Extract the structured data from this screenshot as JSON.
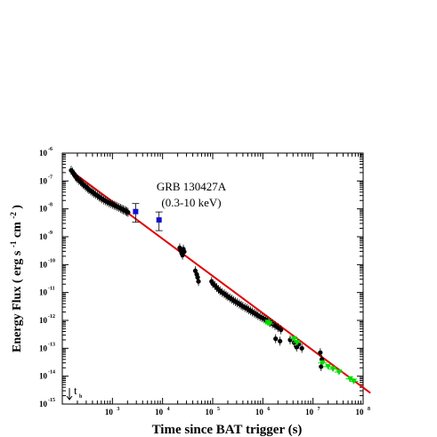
{
  "chart_data": {
    "type": "scatter",
    "xscale": "log",
    "yscale": "log",
    "xlim": [
      100,
      100000000
    ],
    "ylim": [
      1e-15,
      1e-06
    ],
    "xlabel": "Time since BAT trigger (s)",
    "ylabel_main": "Energy Flux ( erg s",
    "ylabel_exp1": "-1",
    "ylabel_mid": " cm",
    "ylabel_exp2": "-2",
    "ylabel_end": ")",
    "title": "GRB 130427A",
    "subtitle": "(0.3-10 keV)",
    "tb_label": "t",
    "tb_sub": "b",
    "x_ticks": [
      {
        "value": 1000,
        "base": "10",
        "exp": "3"
      },
      {
        "value": 10000,
        "base": "10",
        "exp": "4"
      },
      {
        "value": 100000,
        "base": "10",
        "exp": "5"
      },
      {
        "value": 1000000,
        "base": "10",
        "exp": "6"
      },
      {
        "value": 10000000,
        "base": "10",
        "exp": "7"
      },
      {
        "value": 100000000,
        "base": "10",
        "exp": "8"
      }
    ],
    "y_ticks": [
      {
        "value": 1e-06,
        "base": "10",
        "exp": "-6"
      },
      {
        "value": 1e-07,
        "base": "10",
        "exp": "-7"
      },
      {
        "value": 1e-08,
        "base": "10",
        "exp": "-8"
      },
      {
        "value": 1e-09,
        "base": "10",
        "exp": "-9"
      },
      {
        "value": 1e-10,
        "base": "10",
        "exp": "-10"
      },
      {
        "value": 1e-11,
        "base": "10",
        "exp": "-11"
      },
      {
        "value": 1e-12,
        "base": "10",
        "exp": "-12"
      },
      {
        "value": 1e-13,
        "base": "10",
        "exp": "-13"
      },
      {
        "value": 1e-14,
        "base": "10",
        "exp": "-14"
      },
      {
        "value": 1e-15,
        "base": "10",
        "exp": "-15"
      }
    ],
    "fit_line": {
      "color": "#e00000",
      "points": [
        [
          140,
          2.5e-07
        ],
        [
          140000000,
          2.5e-15
        ]
      ]
    },
    "series": [
      {
        "marker": "circle",
        "color": "#000000",
        "points": [
          [
            150,
            2.4e-07
          ],
          [
            160,
            2.1e-07
          ],
          [
            170,
            1.8e-07
          ],
          [
            180,
            1.5e-07
          ],
          [
            190,
            1.35e-07
          ],
          [
            200,
            1.2e-07
          ],
          [
            215,
            1.05e-07
          ],
          [
            230,
            9.5e-08
          ],
          [
            245,
            8.5e-08
          ],
          [
            260,
            7.5e-08
          ],
          [
            280,
            6.8e-08
          ],
          [
            300,
            6e-08
          ],
          [
            320,
            5.5e-08
          ],
          [
            340,
            4.9e-08
          ],
          [
            370,
            4.4e-08
          ],
          [
            400,
            4e-08
          ],
          [
            430,
            3.6e-08
          ],
          [
            460,
            3.3e-08
          ],
          [
            500,
            3e-08
          ],
          [
            540,
            2.7e-08
          ],
          [
            580,
            2.5e-08
          ],
          [
            620,
            2.3e-08
          ],
          [
            670,
            2.1e-08
          ],
          [
            720,
            1.95e-08
          ],
          [
            780,
            1.8e-08
          ],
          [
            850,
            1.65e-08
          ],
          [
            920,
            1.55e-08
          ],
          [
            1000,
            1.45e-08
          ],
          [
            1080,
            1.35e-08
          ],
          [
            1160,
            1.28e-08
          ],
          [
            1250,
            1.2e-08
          ],
          [
            1350,
            1.12e-08
          ],
          [
            1450,
            1.05e-08
          ],
          [
            1550,
            9.8e-09
          ],
          [
            1650,
            9.3e-09
          ],
          [
            1750,
            8.8e-09
          ],
          [
            1850,
            8.3e-09
          ],
          [
            1950,
            7.9e-09
          ],
          [
            2050,
            7.5e-09
          ],
          [
            22000,
            4e-10
          ],
          [
            23000,
            3.2e-10
          ],
          [
            24000,
            2.6e-10
          ],
          [
            25000,
            2.2e-10
          ],
          [
            26000,
            3.6e-10
          ],
          [
            27000,
            2.9e-10
          ],
          [
            45000,
            6e-11
          ],
          [
            48000,
            4.5e-11
          ],
          [
            50000,
            3.5e-11
          ],
          [
            52000,
            2.5e-11
          ],
          [
            95000,
            2.5e-11
          ],
          [
            100000,
            2.1e-11
          ],
          [
            110000,
            1.8e-11
          ],
          [
            120000,
            1.5e-11
          ],
          [
            130000,
            1.3e-11
          ],
          [
            140000,
            1.15e-11
          ],
          [
            155000,
            1e-11
          ],
          [
            170000,
            9e-12
          ],
          [
            185000,
            8e-12
          ],
          [
            200000,
            7.2e-12
          ],
          [
            220000,
            6.4e-12
          ],
          [
            240000,
            5.8e-12
          ],
          [
            260000,
            5.2e-12
          ],
          [
            285000,
            4.7e-12
          ],
          [
            310000,
            4.3e-12
          ],
          [
            340000,
            3.9e-12
          ],
          [
            370000,
            3.5e-12
          ],
          [
            400000,
            3.2e-12
          ],
          [
            440000,
            2.9e-12
          ],
          [
            480000,
            2.7e-12
          ],
          [
            520000,
            2.4e-12
          ],
          [
            570000,
            2.2e-12
          ],
          [
            620000,
            2e-12
          ],
          [
            680000,
            1.8e-12
          ],
          [
            740000,
            1.65e-12
          ],
          [
            800000,
            1.5e-12
          ],
          [
            880000,
            1.35e-12
          ],
          [
            960000,
            1.25e-12
          ],
          [
            1050000,
            1.15e-12
          ],
          [
            1150000,
            1.05e-12
          ],
          [
            1250000,
            9.5e-13
          ],
          [
            1400000,
            8.5e-13
          ],
          [
            1550000,
            7.5e-13
          ],
          [
            1750000,
            6.5e-13
          ],
          [
            2000000,
            5.5e-13
          ],
          [
            2300000,
            4.6e-13
          ],
          [
            1800000,
            2.2e-13
          ],
          [
            2200000,
            1.8e-13
          ],
          [
            3500000,
            2e-13
          ],
          [
            4200000,
            1.6e-13
          ],
          [
            4700000,
            1.1e-13
          ],
          [
            5200000,
            1.4e-13
          ],
          [
            6000000,
            1e-13
          ],
          [
            14000000,
            7e-14
          ],
          [
            15000000,
            4e-14
          ],
          [
            14500000,
            2.2e-14
          ]
        ]
      },
      {
        "marker": "square",
        "color": "#1010d0",
        "points": [
          [
            2900,
            8e-09
          ],
          [
            8500,
            4e-09
          ]
        ]
      },
      {
        "marker": "triangle-down",
        "color": "#00dd00",
        "points": [
          [
            1250000,
            8.5e-13
          ],
          [
            1350000,
            7.5e-13
          ],
          [
            4200000,
            2.2e-13
          ],
          [
            4800000,
            1.6e-13
          ],
          [
            15500000,
            3e-14
          ],
          [
            20000000,
            2.2e-14
          ],
          [
            25000000,
            1.8e-14
          ],
          [
            33000000,
            1.4e-14
          ],
          [
            55000000,
            8e-15
          ],
          [
            65000000,
            6.5e-15
          ]
        ]
      }
    ]
  }
}
